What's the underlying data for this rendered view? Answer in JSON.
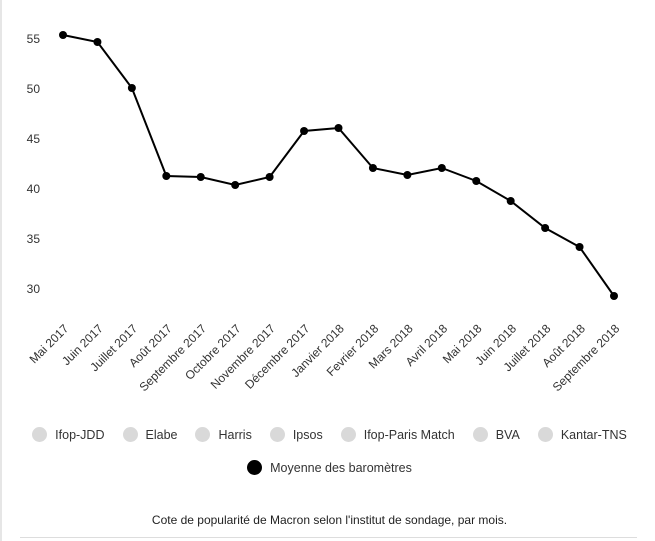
{
  "chart_data": {
    "type": "line",
    "categories": [
      "Mai 2017",
      "Juin 2017",
      "Juillet 2017",
      "Août 2017",
      "Septembre 2017",
      "Octobre 2017",
      "Novembre 2017",
      "Décembre 2017",
      "Janvier 2018",
      "Fevrier 2018",
      "Mars 2018",
      "Avril 2018",
      "Mai 2018",
      "Juin 2018",
      "Juillet 2018",
      "Août 2018",
      "Septembre 2018"
    ],
    "series": [
      {
        "name": "Ifop-JDD",
        "color": "#d9d9d9",
        "visible": false
      },
      {
        "name": "Elabe",
        "color": "#d9d9d9",
        "visible": false
      },
      {
        "name": "Harris",
        "color": "#d9d9d9",
        "visible": false
      },
      {
        "name": "Ipsos",
        "color": "#d9d9d9",
        "visible": false
      },
      {
        "name": "Ifop-Paris Match",
        "color": "#d9d9d9",
        "visible": false
      },
      {
        "name": "BVA",
        "color": "#d9d9d9",
        "visible": false
      },
      {
        "name": "Kantar-TNS",
        "color": "#d9d9d9",
        "visible": false
      },
      {
        "name": "Moyenne des baromètres",
        "color": "#000000",
        "visible": true,
        "values": [
          55.5,
          54.8,
          50.2,
          41.4,
          41.3,
          40.5,
          41.3,
          45.9,
          46.2,
          42.2,
          41.5,
          42.2,
          40.9,
          38.9,
          36.2,
          34.3,
          29.4
        ]
      }
    ],
    "ylim": [
      27,
      57
    ],
    "yticks": [
      30,
      35,
      40,
      45,
      50,
      55
    ],
    "grid": false,
    "caption": "Cote de popularité de Macron selon l'institut de sondage, par mois."
  }
}
